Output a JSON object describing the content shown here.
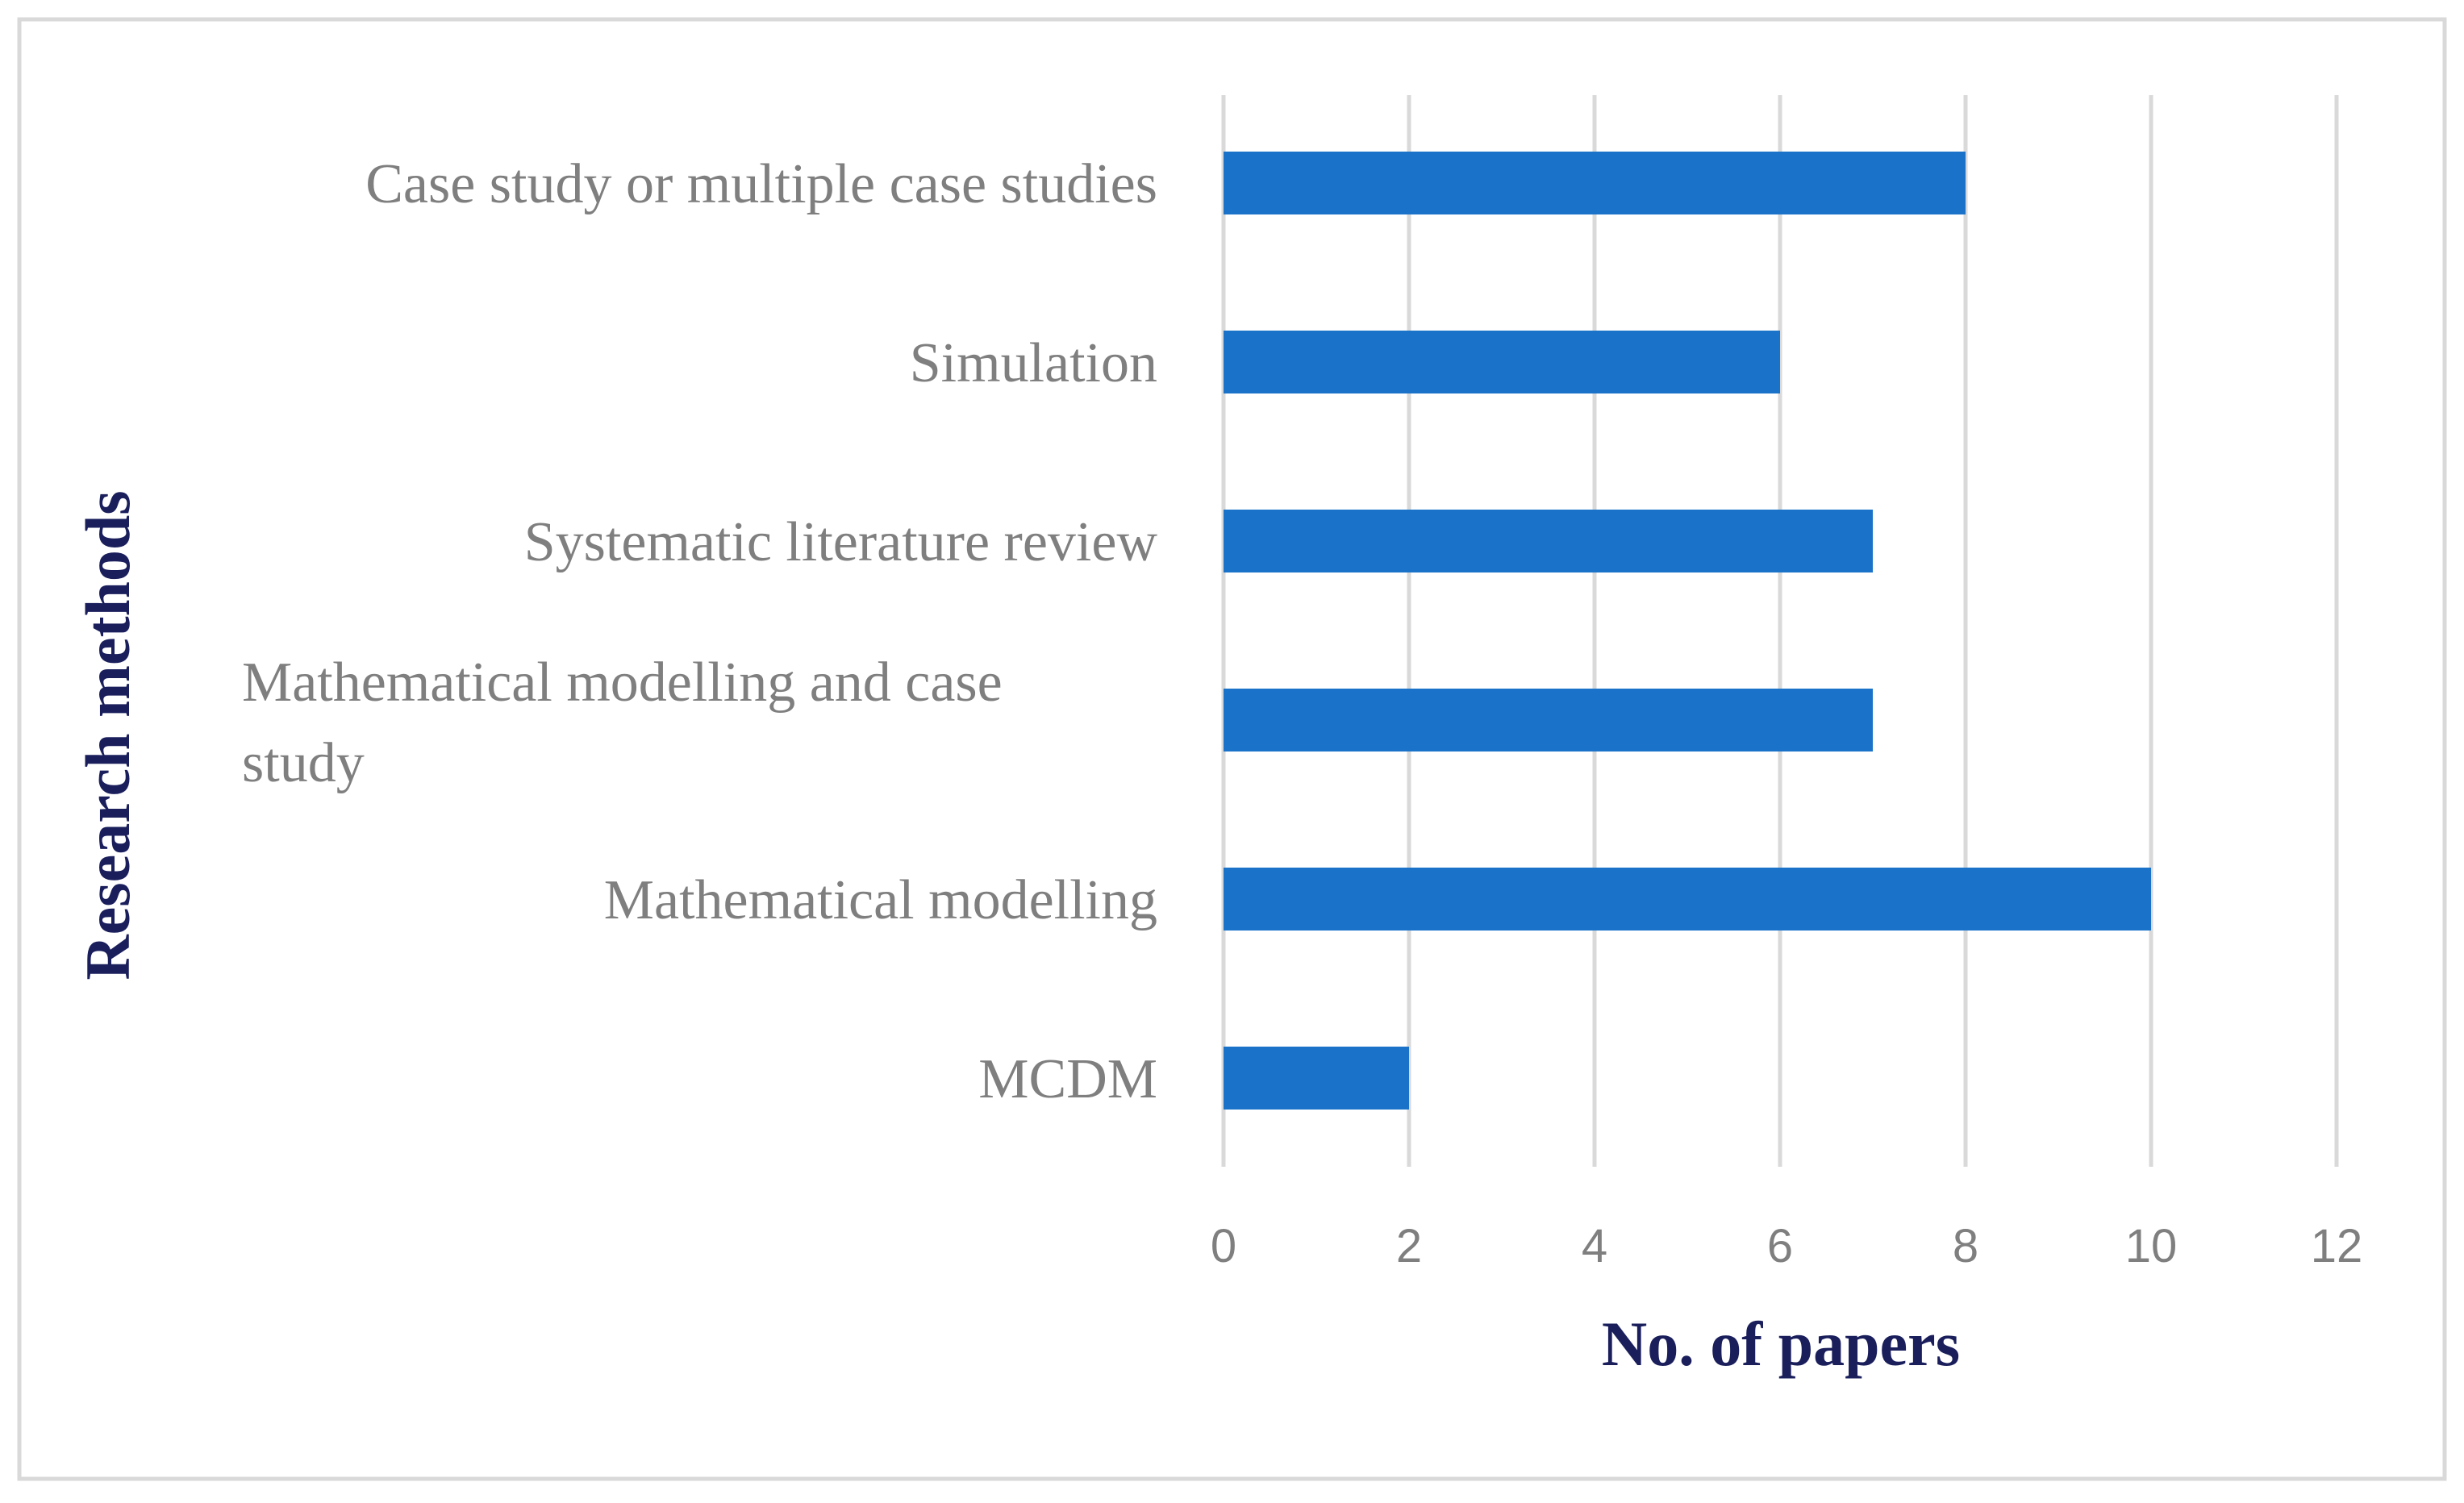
{
  "chart_data": {
    "type": "bar",
    "orientation": "horizontal",
    "categories": [
      "Case study or multiple case studies",
      "Simulation",
      "Systematic literature review",
      "Mathematical modelling and case study",
      "Mathematical modelling",
      "MCDM"
    ],
    "category_lines": [
      [
        "Case study or multiple case studies"
      ],
      [
        "Simulation"
      ],
      [
        "Systematic literature review"
      ],
      [
        "Mathematical modelling and case",
        "study"
      ],
      [
        "Mathematical modelling"
      ],
      [
        "MCDM"
      ]
    ],
    "values": [
      8,
      6,
      7,
      7,
      10,
      2
    ],
    "xlabel": "No. of papers",
    "ylabel": "Research methods",
    "xlim": [
      0,
      12
    ],
    "xticks": [
      0,
      2,
      4,
      6,
      8,
      10,
      12
    ],
    "grid": "vertical",
    "legend": "none",
    "colors": {
      "bar": "#1a73c9",
      "grid": "#d9d9d9",
      "frame": "#d9d9d9",
      "axis_title": "#1a1f5c",
      "label": "#7f7f7f"
    }
  }
}
